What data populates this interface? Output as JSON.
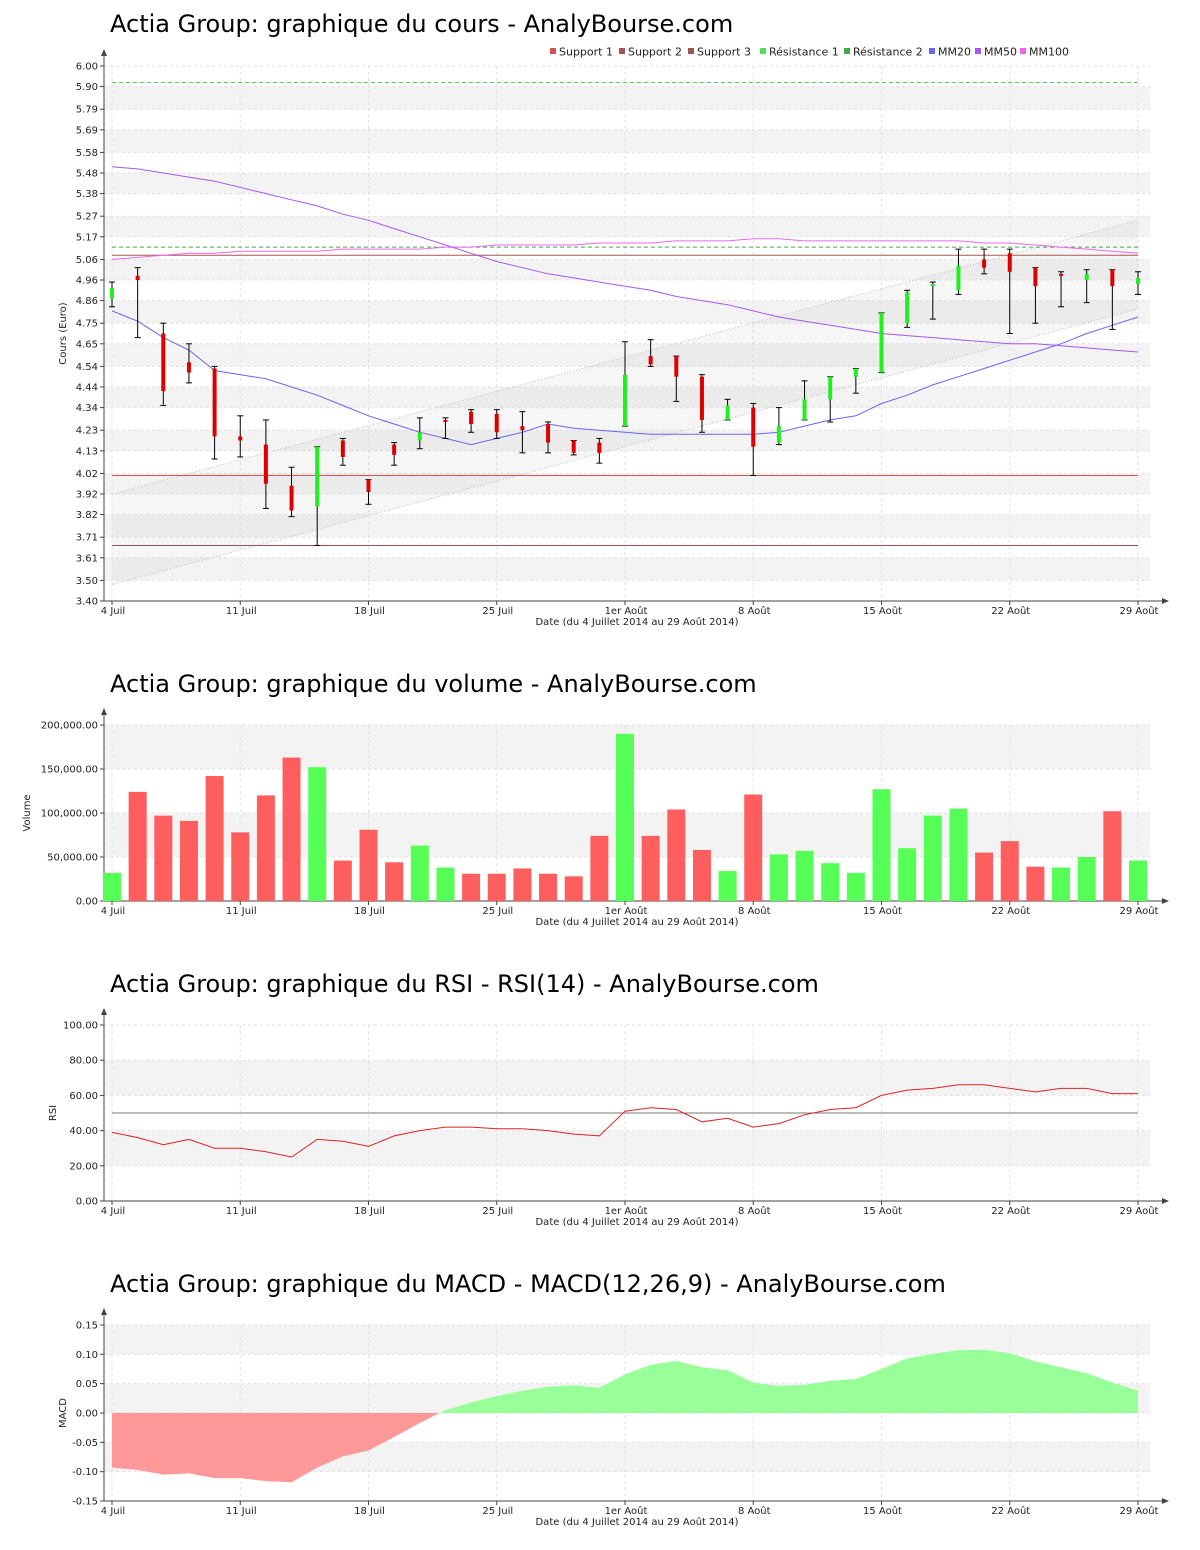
{
  "chart_data": [
    {
      "id": "price",
      "type": "candlestick",
      "title": "Actia Group: graphique du cours - AnalyBourse.com",
      "xlabel": "Date (du 4 Juillet 2014 au 29 Août 2014)",
      "ylabel": "Cours (Euro)",
      "ylim": [
        3.4,
        6.0
      ],
      "yticks": [
        "3.40",
        "3.50",
        "3.61",
        "3.71",
        "3.82",
        "3.92",
        "4.02",
        "4.13",
        "4.23",
        "4.34",
        "4.44",
        "4.54",
        "4.65",
        "4.75",
        "4.86",
        "4.96",
        "5.06",
        "5.17",
        "5.27",
        "5.38",
        "5.48",
        "5.58",
        "5.69",
        "5.79",
        "5.90",
        "6.00"
      ],
      "x_tick_labels": [
        "4 Juil",
        "11 Juil",
        "18 Juil",
        "25 Juil",
        "1er Août",
        "8 Août",
        "15 Août",
        "22 Août",
        "29 Août"
      ],
      "x_tick_indices": [
        0,
        5,
        10,
        15,
        20,
        25,
        30,
        35,
        40
      ],
      "grid": true,
      "legend_position": "top-right",
      "legend": [
        {
          "label": "Support 1",
          "color": "#cc5555"
        },
        {
          "label": "Support 2",
          "color": "#aa5555"
        },
        {
          "label": "Support 3",
          "color": "#995555"
        },
        {
          "label": "Résistance 1",
          "color": "#55dd55"
        },
        {
          "label": "Résistance 2",
          "color": "#44aa44"
        },
        {
          "label": "MM20",
          "color": "#6666ee"
        },
        {
          "label": "MM50",
          "color": "#aa55ee"
        },
        {
          "label": "MM100",
          "color": "#ee66ee"
        }
      ],
      "candles": [
        {
          "open": 4.87,
          "close": 4.92,
          "high": 4.95,
          "low": 4.83
        },
        {
          "open": 4.98,
          "close": 4.96,
          "high": 5.02,
          "low": 4.68
        },
        {
          "open": 4.7,
          "close": 4.42,
          "high": 4.75,
          "low": 4.35
        },
        {
          "open": 4.56,
          "close": 4.51,
          "high": 4.65,
          "low": 4.46
        },
        {
          "open": 4.53,
          "close": 4.2,
          "high": 4.54,
          "low": 4.09
        },
        {
          "open": 4.2,
          "close": 4.18,
          "high": 4.3,
          "low": 4.1
        },
        {
          "open": 4.16,
          "close": 3.97,
          "high": 4.28,
          "low": 3.85
        },
        {
          "open": 3.96,
          "close": 3.84,
          "high": 4.05,
          "low": 3.81
        },
        {
          "open": 3.86,
          "close": 4.15,
          "high": 4.15,
          "low": 3.67
        },
        {
          "open": 4.18,
          "close": 4.1,
          "high": 4.19,
          "low": 4.06
        },
        {
          "open": 3.99,
          "close": 3.93,
          "high": 3.99,
          "low": 3.87
        },
        {
          "open": 4.16,
          "close": 4.11,
          "high": 4.17,
          "low": 4.06
        },
        {
          "open": 4.18,
          "close": 4.22,
          "high": 4.29,
          "low": 4.14
        },
        {
          "open": 4.28,
          "close": 4.27,
          "high": 4.29,
          "low": 4.19
        },
        {
          "open": 4.32,
          "close": 4.26,
          "high": 4.33,
          "low": 4.22
        },
        {
          "open": 4.31,
          "close": 4.22,
          "high": 4.33,
          "low": 4.19
        },
        {
          "open": 4.25,
          "close": 4.23,
          "high": 4.32,
          "low": 4.12
        },
        {
          "open": 4.26,
          "close": 4.17,
          "high": 4.27,
          "low": 4.12
        },
        {
          "open": 4.18,
          "close": 4.12,
          "high": 4.18,
          "low": 4.11
        },
        {
          "open": 4.17,
          "close": 4.12,
          "high": 4.19,
          "low": 4.07
        },
        {
          "open": 4.25,
          "close": 4.5,
          "high": 4.66,
          "low": 4.25
        },
        {
          "open": 4.59,
          "close": 4.55,
          "high": 4.67,
          "low": 4.54
        },
        {
          "open": 4.59,
          "close": 4.49,
          "high": 4.59,
          "low": 4.37
        },
        {
          "open": 4.49,
          "close": 4.28,
          "high": 4.5,
          "low": 4.22
        },
        {
          "open": 4.28,
          "close": 4.35,
          "high": 4.38,
          "low": 4.28
        },
        {
          "open": 4.34,
          "close": 4.15,
          "high": 4.36,
          "low": 4.01
        },
        {
          "open": 4.17,
          "close": 4.25,
          "high": 4.34,
          "low": 4.16
        },
        {
          "open": 4.28,
          "close": 4.38,
          "high": 4.47,
          "low": 4.28
        },
        {
          "open": 4.38,
          "close": 4.49,
          "high": 4.49,
          "low": 4.27
        },
        {
          "open": 4.49,
          "close": 4.53,
          "high": 4.53,
          "low": 4.41
        },
        {
          "open": 4.51,
          "close": 4.8,
          "high": 4.8,
          "low": 4.51
        },
        {
          "open": 4.75,
          "close": 4.9,
          "high": 4.91,
          "low": 4.73
        },
        {
          "open": 4.93,
          "close": 4.94,
          "high": 4.95,
          "low": 4.77
        },
        {
          "open": 4.91,
          "close": 5.03,
          "high": 5.11,
          "low": 4.89
        },
        {
          "open": 5.06,
          "close": 5.02,
          "high": 5.11,
          "low": 4.99
        },
        {
          "open": 5.09,
          "close": 5.0,
          "high": 5.11,
          "low": 4.7
        },
        {
          "open": 5.02,
          "close": 4.93,
          "high": 5.02,
          "low": 4.75
        },
        {
          "open": 4.99,
          "close": 4.98,
          "high": 5.0,
          "low": 4.83
        },
        {
          "open": 4.96,
          "close": 4.99,
          "high": 5.01,
          "low": 4.85
        },
        {
          "open": 5.01,
          "close": 4.93,
          "high": 5.01,
          "low": 4.72
        },
        {
          "open": 4.94,
          "close": 4.97,
          "high": 5.0,
          "low": 4.89
        }
      ],
      "support_1": 4.01,
      "support_2": 5.08,
      "support_3": 3.67,
      "resistance_1": 5.92,
      "resistance_2": 5.12,
      "channel_upper": {
        "start": 3.92,
        "end": 5.25
      },
      "channel_lower": {
        "start": 3.48,
        "end": 4.82
      },
      "mm20": [
        4.81,
        4.76,
        4.68,
        4.62,
        4.52,
        4.5,
        4.48,
        4.44,
        4.4,
        4.35,
        4.3,
        4.26,
        4.22,
        4.19,
        4.16,
        4.19,
        4.22,
        4.26,
        4.24,
        4.23,
        4.22,
        4.21,
        4.21,
        4.21,
        4.21,
        4.21,
        4.22,
        4.25,
        4.28,
        4.3,
        4.36,
        4.4,
        4.45,
        4.49,
        4.53,
        4.57,
        4.61,
        4.65,
        4.7,
        4.74,
        4.78
      ],
      "mm50": [
        5.51,
        5.5,
        5.48,
        5.46,
        5.44,
        5.41,
        5.38,
        5.35,
        5.32,
        5.28,
        5.25,
        5.21,
        5.17,
        5.13,
        5.09,
        5.05,
        5.02,
        4.99,
        4.97,
        4.95,
        4.93,
        4.91,
        4.88,
        4.86,
        4.84,
        4.81,
        4.78,
        4.76,
        4.74,
        4.72,
        4.7,
        4.69,
        4.68,
        4.67,
        4.66,
        4.65,
        4.65,
        4.64,
        4.63,
        4.62,
        4.61
      ],
      "mm100": [
        5.06,
        5.07,
        5.08,
        5.09,
        5.09,
        5.1,
        5.1,
        5.1,
        5.1,
        5.11,
        5.11,
        5.11,
        5.11,
        5.12,
        5.12,
        5.13,
        5.13,
        5.13,
        5.13,
        5.14,
        5.14,
        5.14,
        5.15,
        5.15,
        5.15,
        5.16,
        5.16,
        5.15,
        5.15,
        5.15,
        5.15,
        5.15,
        5.15,
        5.15,
        5.14,
        5.14,
        5.13,
        5.12,
        5.11,
        5.1,
        5.09
      ]
    },
    {
      "id": "volume",
      "type": "bar",
      "title": "Actia Group: graphique du volume - AnalyBourse.com",
      "xlabel": "Date (du 4 Juillet 2014 au 29 Août 2014)",
      "ylabel": "Volume",
      "ylim": [
        0,
        200000
      ],
      "yticks": [
        "0.00",
        "50,000.00",
        "100,000.00",
        "150,000.00",
        "200,000.00"
      ],
      "x_tick_labels": [
        "4 Juil",
        "11 Juil",
        "18 Juil",
        "25 Juil",
        "1er Août",
        "8 Août",
        "15 Août",
        "22 Août",
        "29 Août"
      ],
      "x_tick_indices": [
        0,
        5,
        10,
        15,
        20,
        25,
        30,
        35,
        40
      ],
      "grid": true,
      "values": [
        32000,
        124000,
        97000,
        91000,
        142000,
        78000,
        120000,
        163000,
        152000,
        46000,
        81000,
        44000,
        63000,
        38000,
        31000,
        31000,
        37000,
        31000,
        28000,
        74000,
        190000,
        74000,
        104000,
        58000,
        34000,
        121000,
        53000,
        57000,
        43000,
        32000,
        127000,
        60000,
        97000,
        105000,
        55000,
        68000,
        39000,
        38000,
        50000,
        102000,
        46000
      ],
      "direction": [
        "up",
        "down",
        "down",
        "down",
        "down",
        "down",
        "down",
        "down",
        "up",
        "down",
        "down",
        "down",
        "up",
        "up",
        "down",
        "down",
        "down",
        "down",
        "down",
        "down",
        "up",
        "down",
        "down",
        "down",
        "up",
        "down",
        "up",
        "up",
        "up",
        "up",
        "up",
        "up",
        "up",
        "up",
        "down",
        "down",
        "down",
        "up",
        "up",
        "down",
        "up"
      ]
    },
    {
      "id": "rsi",
      "type": "line",
      "title": "Actia Group: graphique du RSI - RSI(14) - AnalyBourse.com",
      "xlabel": "Date (du 4 Juillet 2014 au 29 Août 2014)",
      "ylabel": "RSI",
      "ylim": [
        0,
        100
      ],
      "yticks": [
        "0.00",
        "20.00",
        "40.00",
        "60.00",
        "80.00",
        "100.00"
      ],
      "x_tick_labels": [
        "4 Juil",
        "11 Juil",
        "18 Juil",
        "25 Juil",
        "1er Août",
        "8 Août",
        "15 Août",
        "22 Août",
        "29 Août"
      ],
      "x_tick_indices": [
        0,
        5,
        10,
        15,
        20,
        25,
        30,
        35,
        40
      ],
      "grid": true,
      "reference_line": 50,
      "values": [
        39,
        36,
        32,
        35,
        30,
        30,
        28,
        25,
        35,
        34,
        31,
        37,
        40,
        42,
        42,
        41,
        41,
        40,
        38,
        37,
        51,
        53,
        52,
        45,
        47,
        42,
        44,
        49,
        52,
        53,
        60,
        63,
        64,
        66,
        66,
        64,
        62,
        64,
        64,
        61,
        61
      ]
    },
    {
      "id": "macd",
      "type": "area",
      "title": "Actia Group: graphique du MACD - MACD(12,26,9) - AnalyBourse.com",
      "xlabel": "Date (du 4 Juillet 2014 au 29 Août 2014)",
      "ylabel": "MACD",
      "ylim": [
        -0.15,
        0.15
      ],
      "yticks": [
        "-0.15",
        "-0.10",
        "-0.05",
        "0.00",
        "0.05",
        "0.10",
        "0.15"
      ],
      "x_tick_labels": [
        "4 Juil",
        "11 Juil",
        "18 Juil",
        "25 Juil",
        "1er Août",
        "8 Août",
        "15 Août",
        "22 Août",
        "29 Août"
      ],
      "x_tick_indices": [
        0,
        5,
        10,
        15,
        20,
        25,
        30,
        35,
        40
      ],
      "grid": true,
      "positive_color": "#99ff99",
      "negative_color": "#ff9999",
      "values": [
        -0.093,
        -0.097,
        -0.105,
        -0.103,
        -0.111,
        -0.111,
        -0.116,
        -0.118,
        -0.093,
        -0.074,
        -0.064,
        -0.041,
        -0.017,
        0.005,
        0.018,
        0.029,
        0.038,
        0.045,
        0.047,
        0.043,
        0.066,
        0.082,
        0.089,
        0.078,
        0.073,
        0.052,
        0.046,
        0.048,
        0.055,
        0.058,
        0.075,
        0.093,
        0.101,
        0.107,
        0.108,
        0.102,
        0.088,
        0.078,
        0.068,
        0.052,
        0.038
      ]
    }
  ]
}
